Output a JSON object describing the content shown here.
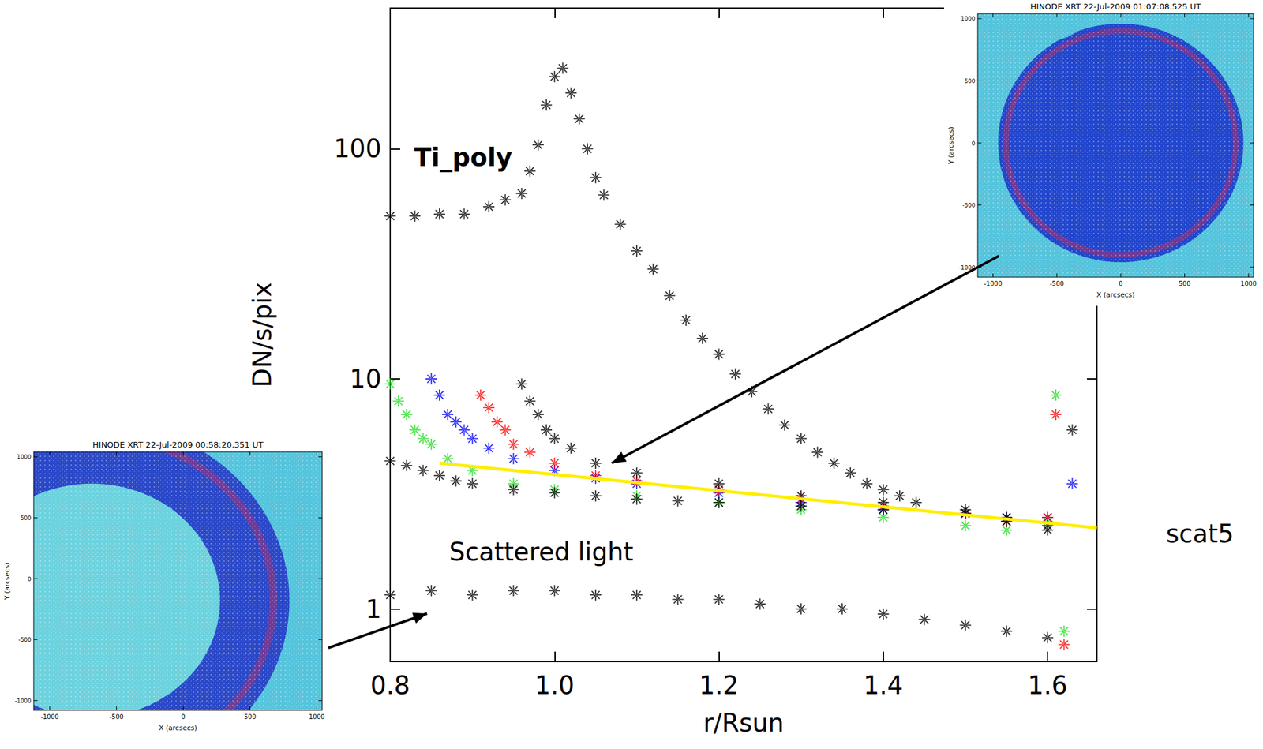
{
  "chart_data": {
    "type": "scatter",
    "xlabel": "r/Rsun",
    "ylabel": "DN/s/pix",
    "xlim": [
      0.8,
      1.66
    ],
    "ylim": [
      0.59,
      409
    ],
    "xticks": [
      0.8,
      {
        "value": 1.0,
        "label": "1.0"
      },
      1.2,
      1.4,
      1.6
    ],
    "yticks": [
      1,
      10,
      100
    ],
    "log": "y",
    "grid": false,
    "annotations": [
      "Ti_poly",
      "Scattered light",
      "scat5"
    ],
    "series": [
      {
        "color": "#000000",
        "marker": "asterisk",
        "x": [
          0.8,
          0.83,
          0.86,
          0.89,
          0.92,
          0.94,
          0.96,
          0.97,
          0.98,
          0.99,
          1.0,
          1.01,
          1.02,
          1.03,
          1.04,
          1.05,
          1.06,
          1.08,
          1.1,
          1.12,
          1.14,
          1.16,
          1.18,
          1.2,
          1.22,
          1.24,
          1.26,
          1.28,
          1.3,
          1.32,
          1.34,
          1.36,
          1.38,
          1.4,
          1.42,
          1.44
        ],
        "values": [
          51,
          51,
          52,
          52,
          56,
          60,
          64,
          80,
          104,
          155,
          206,
          224,
          175,
          135,
          100,
          75,
          63,
          47,
          36,
          30,
          23,
          18,
          15,
          12.8,
          10.5,
          8.8,
          7.4,
          6.3,
          5.5,
          4.8,
          4.3,
          3.9,
          3.5,
          3.3,
          3.1,
          2.9
        ]
      },
      {
        "color": "#22dd22",
        "marker": "asterisk",
        "x": [
          0.8,
          0.81,
          0.82,
          0.83,
          0.84,
          0.85,
          0.87,
          0.9,
          0.95,
          1.0,
          1.1,
          1.2,
          1.3,
          1.4,
          1.5,
          1.55,
          1.6,
          1.61,
          1.62
        ],
        "values": [
          9.5,
          8,
          7,
          6,
          5.5,
          5.2,
          4.5,
          4,
          3.5,
          3.3,
          3.1,
          2.9,
          2.7,
          2.5,
          2.3,
          2.2,
          2.4,
          8.5,
          0.8
        ]
      },
      {
        "color": "#0000ff",
        "marker": "asterisk",
        "x": [
          0.85,
          0.86,
          0.87,
          0.88,
          0.89,
          0.9,
          0.92,
          0.95,
          1.0,
          1.05,
          1.1,
          1.2,
          1.3,
          1.4,
          1.5,
          1.55,
          1.6,
          1.63
        ],
        "values": [
          10,
          8.5,
          7,
          6.5,
          6,
          5.5,
          5,
          4.5,
          4,
          3.7,
          3.5,
          3.2,
          2.9,
          2.7,
          2.6,
          2.5,
          2.5,
          3.5
        ]
      },
      {
        "color": "#ff0000",
        "marker": "asterisk",
        "x": [
          0.91,
          0.92,
          0.93,
          0.94,
          0.95,
          0.97,
          1.0,
          1.05,
          1.1,
          1.2,
          1.3,
          1.4,
          1.5,
          1.55,
          1.6,
          1.61,
          1.62
        ],
        "values": [
          8.5,
          7.5,
          6.5,
          6,
          5.2,
          4.8,
          4.3,
          3.8,
          3.6,
          3.3,
          3.0,
          2.8,
          2.6,
          2.4,
          2.5,
          7,
          0.7
        ]
      },
      {
        "color": "#000000",
        "marker": "asterisk",
        "x": [
          0.96,
          0.97,
          0.98,
          0.99,
          1.0,
          1.02,
          1.05,
          1.1,
          1.2,
          1.3,
          1.4,
          1.5,
          1.55,
          1.6,
          1.63
        ],
        "values": [
          9.5,
          8,
          7,
          6,
          5.5,
          5,
          4.3,
          3.9,
          3.5,
          3.1,
          2.9,
          2.7,
          2.5,
          2.3,
          6
        ]
      },
      {
        "color": "#000000",
        "marker": "asterisk",
        "x": [
          0.8,
          0.82,
          0.84,
          0.86,
          0.88,
          0.9,
          0.95,
          1.0,
          1.05,
          1.1,
          1.15,
          1.2,
          1.3,
          1.4,
          1.5,
          1.55,
          1.6
        ],
        "values": [
          4.4,
          4.2,
          4.0,
          3.8,
          3.6,
          3.5,
          3.3,
          3.2,
          3.1,
          3.0,
          2.95,
          2.9,
          2.8,
          2.7,
          2.6,
          2.4,
          2.2
        ]
      },
      {
        "color": "#000000",
        "marker": "asterisk",
        "x": [
          0.8,
          0.85,
          0.9,
          0.95,
          1.0,
          1.05,
          1.1,
          1.15,
          1.2,
          1.25,
          1.3,
          1.35,
          1.4,
          1.45,
          1.5,
          1.55,
          1.6
        ],
        "values": [
          1.15,
          1.2,
          1.15,
          1.2,
          1.2,
          1.15,
          1.15,
          1.1,
          1.1,
          1.05,
          1.0,
          1.0,
          0.95,
          0.9,
          0.85,
          0.8,
          0.75
        ]
      },
      {
        "type": "line",
        "color": "#ffee00",
        "line_style": "solid",
        "x": [
          0.86,
          1.66
        ],
        "values": [
          4.3,
          2.25
        ]
      }
    ]
  },
  "insets": [
    {
      "title": "HINODE XRT 22-Jul-2009 01:07:08.525 UT",
      "xlabel": "X (arcsecs)",
      "ylabel": "Y (arcsecs)",
      "xlim": [
        -1120,
        1040
      ],
      "ylim": [
        -1080,
        1040
      ],
      "xticks": [
        -1000,
        -500,
        0,
        500,
        1000
      ],
      "yticks": [
        -1000,
        -500,
        0,
        500,
        1000
      ]
    },
    {
      "title": "HINODE XRT 22-Jul-2009 00:58:20.351 UT",
      "xlabel": "X (arcsecs)",
      "ylabel": "Y (arcsecs)",
      "xlim": [
        -1120,
        1040
      ],
      "ylim": [
        -1080,
        1040
      ],
      "xticks": [
        -1000,
        -500,
        0,
        500,
        1000
      ],
      "yticks": [
        -1000,
        -500,
        0,
        500,
        1000
      ]
    }
  ]
}
